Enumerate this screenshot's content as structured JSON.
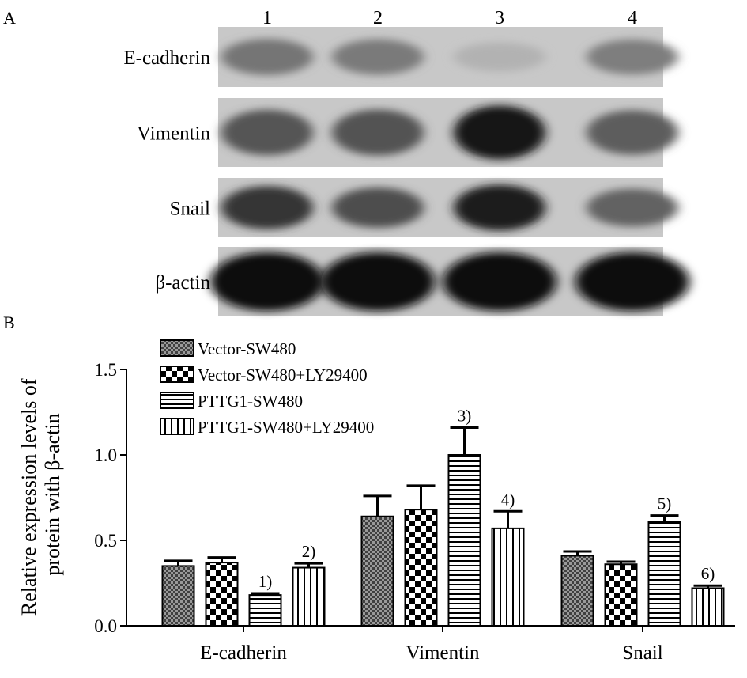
{
  "panels": {
    "a": "A",
    "b": "B"
  },
  "blot": {
    "lanes": [
      "1",
      "2",
      "3",
      "4"
    ],
    "rows": [
      {
        "label": "E-cadherin",
        "intensity": [
          0.45,
          0.42,
          0.12,
          0.4
        ]
      },
      {
        "label": "Vimentin",
        "intensity": [
          0.62,
          0.64,
          0.95,
          0.58
        ]
      },
      {
        "label": "Snail",
        "intensity": [
          0.8,
          0.66,
          0.92,
          0.55
        ]
      },
      {
        "label": "β-actin",
        "intensity": [
          1.0,
          1.0,
          1.0,
          1.0
        ]
      }
    ]
  },
  "chart_data": {
    "type": "bar",
    "title": "",
    "xlabel": "",
    "ylabel": "Relative expression levels of protein with β-actin",
    "ylim": [
      0,
      1.5
    ],
    "yticks": [
      "0.0",
      "0.5",
      "1.0",
      "1.5"
    ],
    "categories": [
      "E-cadherin",
      "Vimentin",
      "Snail"
    ],
    "series": [
      {
        "name": "Vector-SW480",
        "pattern": "dots",
        "values": [
          0.35,
          0.64,
          0.41
        ],
        "errors": [
          0.03,
          0.12,
          0.025
        ]
      },
      {
        "name": "Vector-SW480+LY29400",
        "pattern": "checker",
        "values": [
          0.37,
          0.68,
          0.36
        ],
        "errors": [
          0.03,
          0.14,
          0.015
        ]
      },
      {
        "name": "PTTG1-SW480",
        "pattern": "hlines",
        "values": [
          0.18,
          1.0,
          0.61
        ],
        "errors": [
          0.01,
          0.16,
          0.035
        ]
      },
      {
        "name": "PTTG1-SW480+LY29400",
        "pattern": "vlines",
        "values": [
          0.34,
          0.57,
          0.22
        ],
        "errors": [
          0.025,
          0.1,
          0.015
        ]
      }
    ],
    "annotations": [
      {
        "text": "1)",
        "category": 0,
        "series": 2
      },
      {
        "text": "2)",
        "category": 0,
        "series": 3
      },
      {
        "text": "3)",
        "category": 1,
        "series": 2
      },
      {
        "text": "4)",
        "category": 1,
        "series": 3
      },
      {
        "text": "5)",
        "category": 2,
        "series": 2
      },
      {
        "text": "6)",
        "category": 2,
        "series": 3
      }
    ],
    "legend_position": "top-left",
    "grid": false
  }
}
